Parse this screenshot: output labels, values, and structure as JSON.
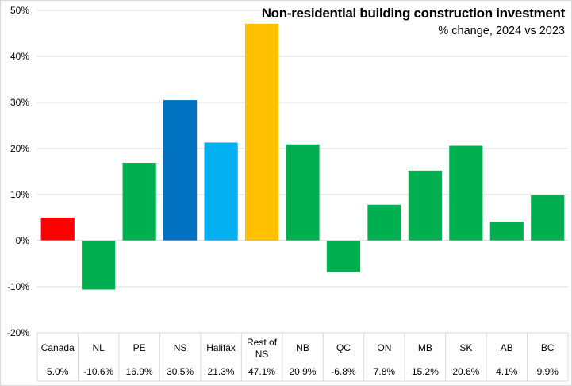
{
  "chart_data": {
    "type": "bar",
    "title": "Non-residential building construction investment",
    "subtitle": "% change, 2024 vs 2023",
    "categories": [
      "Canada",
      "NL",
      "PE",
      "NS",
      "Halifax",
      "Rest of NS",
      "NB",
      "QC",
      "ON",
      "MB",
      "SK",
      "AB",
      "BC"
    ],
    "values": [
      5.0,
      -10.6,
      16.9,
      30.5,
      21.3,
      47.1,
      20.9,
      -6.8,
      7.8,
      15.2,
      20.6,
      4.1,
      9.9
    ],
    "value_labels": [
      "5.0%",
      "-10.6%",
      "16.9%",
      "30.5%",
      "21.3%",
      "47.1%",
      "20.9%",
      "-6.8%",
      "7.8%",
      "15.2%",
      "20.6%",
      "4.1%",
      "9.9%"
    ],
    "bar_colors": [
      "#ff0000",
      "#00b050",
      "#00b050",
      "#0070c0",
      "#00b0f0",
      "#ffc000",
      "#00b050",
      "#00b050",
      "#00b050",
      "#00b050",
      "#00b050",
      "#00b050",
      "#00b050"
    ],
    "ylim": [
      -20,
      50
    ],
    "yticks": [
      50,
      40,
      30,
      20,
      10,
      0,
      -10,
      -20
    ],
    "ytick_labels": [
      "50%",
      "40%",
      "30%",
      "20%",
      "10%",
      "0%",
      "-10%",
      "-20%"
    ],
    "grid": true,
    "gridline_color": "#d9d9d9"
  }
}
